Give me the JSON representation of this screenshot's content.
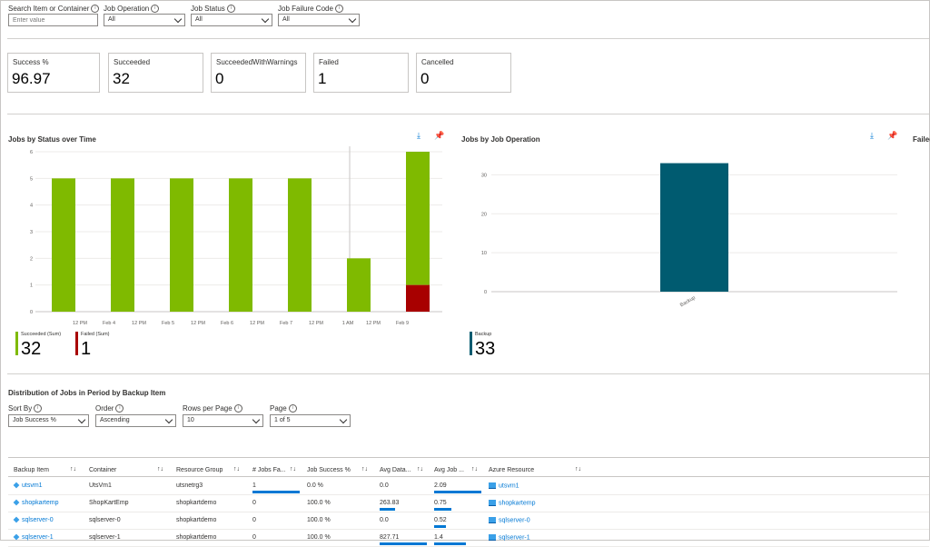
{
  "filters": {
    "search": {
      "label": "Search Item or Container",
      "placeholder": "Enter value"
    },
    "job_operation": {
      "label": "Job Operation",
      "value": "All"
    },
    "job_status": {
      "label": "Job Status",
      "value": "All"
    },
    "job_failure_code": {
      "label": "Job Failure Code",
      "value": "All"
    }
  },
  "tiles": [
    {
      "label": "Success %",
      "value": "96.97"
    },
    {
      "label": "Succeeded",
      "value": "32"
    },
    {
      "label": "SucceededWithWarnings",
      "value": "0"
    },
    {
      "label": "Failed",
      "value": "1"
    },
    {
      "label": "Cancelled",
      "value": "0"
    }
  ],
  "chart_titles": {
    "status_over_time": "Jobs by Status over Time",
    "by_operation": "Jobs by Job Operation",
    "third": "Failed"
  },
  "chart_data": [
    {
      "type": "bar",
      "title": "Jobs by Status over Time",
      "x_tick_labels": [
        "12 PM",
        "Feb 4",
        "12 PM",
        "Feb 5",
        "12 PM",
        "Feb 6",
        "12 PM",
        "Feb 7",
        "12 PM",
        "1 AM",
        "12 PM",
        "Feb 9"
      ],
      "ylim": [
        0,
        6
      ],
      "y_ticks": [
        0,
        1,
        2,
        3,
        4,
        5,
        6
      ],
      "stacked": true,
      "series": [
        {
          "name": "Succeeded (Sum)",
          "color": "#7fba00",
          "values": [
            5,
            5,
            5,
            5,
            5,
            2,
            5
          ]
        },
        {
          "name": "Failed (Sum)",
          "color": "#a80000",
          "values": [
            0,
            0,
            0,
            0,
            0,
            0,
            1
          ]
        }
      ],
      "legend": [
        {
          "label": "Succeeded (Sum)",
          "value": "32",
          "color": "#7fba00"
        },
        {
          "label": "Failed (Sum)",
          "value": "1",
          "color": "#a80000"
        }
      ]
    },
    {
      "type": "bar",
      "title": "Jobs by Job Operation",
      "categories": [
        "Backup"
      ],
      "values": [
        33
      ],
      "ylim": [
        0,
        35
      ],
      "y_ticks": [
        0,
        10,
        20,
        30
      ],
      "color": "#005b70",
      "legend": [
        {
          "label": "Backup",
          "value": "33",
          "color": "#005b70"
        }
      ]
    }
  ],
  "distribution": {
    "title": "Distribution of Jobs in Period by Backup Item",
    "sort_by": {
      "label": "Sort By",
      "value": "Job Success %"
    },
    "order": {
      "label": "Order",
      "value": "Ascending"
    },
    "rows_per_page": {
      "label": "Rows per Page",
      "value": "10"
    },
    "page": {
      "label": "Page",
      "value": "1 of 5"
    }
  },
  "table": {
    "columns": [
      "Backup Item",
      "Container",
      "Resource Group",
      "# Jobs Fa...",
      "Job Success %",
      "Avg Data...",
      "Avg Job ...",
      "Azure Resource"
    ],
    "rows": [
      {
        "item": "utsvm1",
        "container": "UtsVm1",
        "rg": "utsnetrg3",
        "jobs_failed": "1",
        "success": "0.0 %",
        "avg_data": "0.0",
        "avg_job": "2.09",
        "resource": "utsvm1",
        "jf_frac": 1.0,
        "ad_frac": 0.0,
        "aj_frac": 1.0
      },
      {
        "item": "shopkartemp",
        "container": "ShopKartEmp",
        "rg": "shopkartdemo",
        "jobs_failed": "0",
        "success": "100.0 %",
        "avg_data": "263.83",
        "avg_job": "0.75",
        "resource": "shopkartemp",
        "jf_frac": 0.0,
        "ad_frac": 0.32,
        "aj_frac": 0.36
      },
      {
        "item": "sqlserver-0",
        "container": "sqlserver-0",
        "rg": "shopkartdemo",
        "jobs_failed": "0",
        "success": "100.0 %",
        "avg_data": "0.0",
        "avg_job": "0.52",
        "resource": "sqlserver-0",
        "jf_frac": 0.0,
        "ad_frac": 0.0,
        "aj_frac": 0.25
      },
      {
        "item": "sqlserver-1",
        "container": "sqlserver-1",
        "rg": "shopkartdemo",
        "jobs_failed": "0",
        "success": "100.0 %",
        "avg_data": "827.71",
        "avg_job": "1.4",
        "resource": "sqlserver-1",
        "jf_frac": 0.0,
        "ad_frac": 1.0,
        "aj_frac": 0.67
      }
    ]
  }
}
